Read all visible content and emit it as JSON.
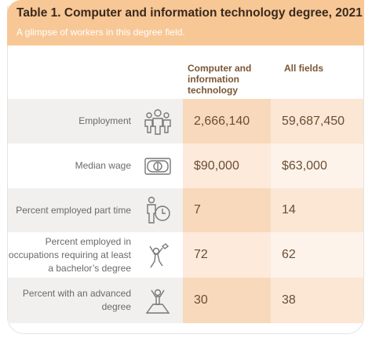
{
  "header": {
    "title": "Table 1. Computer and information technology degree, 2021",
    "subtitle": "A glimpse of workers in this degree field."
  },
  "table": {
    "columns": [
      "Computer and information technology",
      "All fields"
    ],
    "rows": [
      [
        "Employment",
        "2,666,140",
        "59,687,450"
      ],
      [
        "Median wage",
        "$90,000",
        "$63,000"
      ],
      [
        "Percent employed part time",
        "7",
        "14"
      ],
      [
        "Percent employed in occupations requiring at least a bachelor’s degree",
        "72",
        "62"
      ],
      [
        "Percent with an advanced degree",
        "30",
        "38"
      ]
    ]
  }
}
